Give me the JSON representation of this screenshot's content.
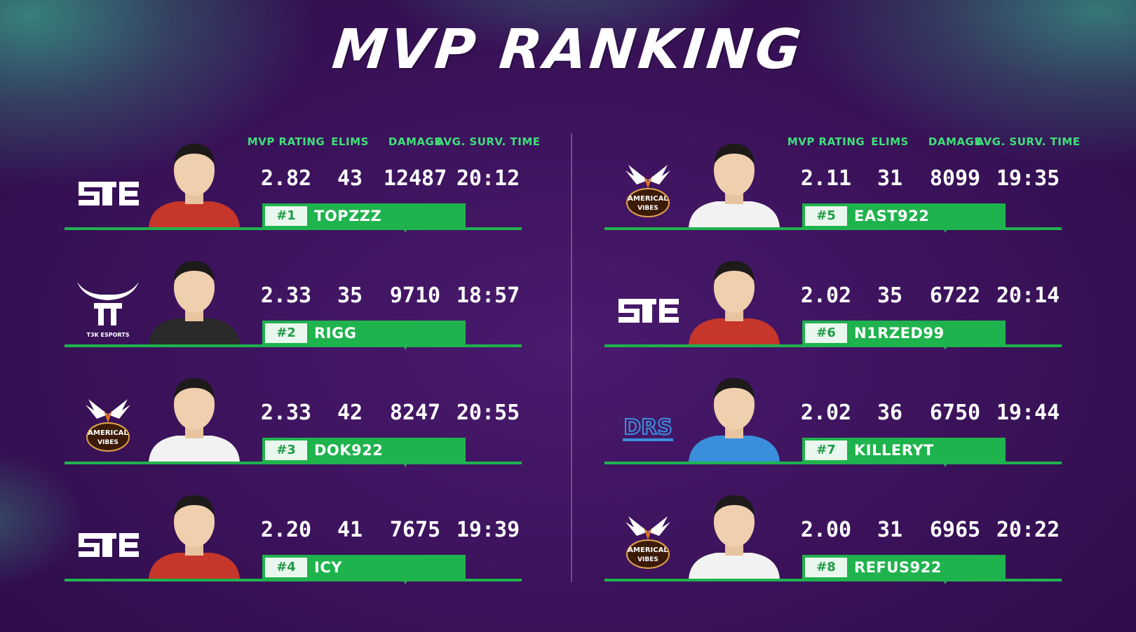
{
  "title": "MVP RANKING",
  "colors": {
    "accent_green": "#1fb34d",
    "header_green": "#3fe07a",
    "background": "#3a1259",
    "splatter": "#3cbe96"
  },
  "columns": {
    "rating": "MVP RATING",
    "elims": "ELIMS",
    "damage": "DAMAGE",
    "survival": "AVG. SURV. TIME"
  },
  "players": [
    {
      "rank": "#1",
      "name": "TOPZZZ",
      "rating": "2.82",
      "elims": "43",
      "damage": "12487",
      "survival": "20:12",
      "logo": "ste-logo",
      "jersey": "#c6362b"
    },
    {
      "rank": "#2",
      "name": "RIGG",
      "rating": "2.33",
      "elims": "35",
      "damage": "9710",
      "survival": "18:57",
      "logo": "t3k-esports-logo",
      "logo_caption": "T3K ESPORTS",
      "jersey": "#2a2a2a"
    },
    {
      "rank": "#3",
      "name": "DOK922",
      "rating": "2.33",
      "elims": "42",
      "damage": "8247",
      "survival": "20:55",
      "logo": "americal-vibes-logo",
      "logo_text": [
        "AMERICAL",
        "VIBES"
      ],
      "jersey": "#f2f2f2"
    },
    {
      "rank": "#4",
      "name": "ICY",
      "rating": "2.20",
      "elims": "41",
      "damage": "7675",
      "survival": "19:39",
      "logo": "ste-logo",
      "jersey": "#c6362b"
    },
    {
      "rank": "#5",
      "name": "EAST922",
      "rating": "2.11",
      "elims": "31",
      "damage": "8099",
      "survival": "19:35",
      "logo": "americal-vibes-logo",
      "logo_text": [
        "AMERICAL",
        "VIBES"
      ],
      "jersey": "#f2f2f2"
    },
    {
      "rank": "#6",
      "name": "N1RZED99",
      "rating": "2.02",
      "elims": "35",
      "damage": "6722",
      "survival": "20:14",
      "logo": "ste-logo",
      "jersey": "#c6362b"
    },
    {
      "rank": "#7",
      "name": "KILLERYT",
      "rating": "2.02",
      "elims": "36",
      "damage": "6750",
      "survival": "19:44",
      "logo": "drs-logo",
      "logo_text": [
        "DRS"
      ],
      "jersey": "#3a8fdc"
    },
    {
      "rank": "#8",
      "name": "REFUS922",
      "rating": "2.00",
      "elims": "31",
      "damage": "6965",
      "survival": "20:22",
      "logo": "americal-vibes-logo",
      "logo_text": [
        "AMERICAL",
        "VIBES"
      ],
      "jersey": "#f2f2f2"
    }
  ]
}
